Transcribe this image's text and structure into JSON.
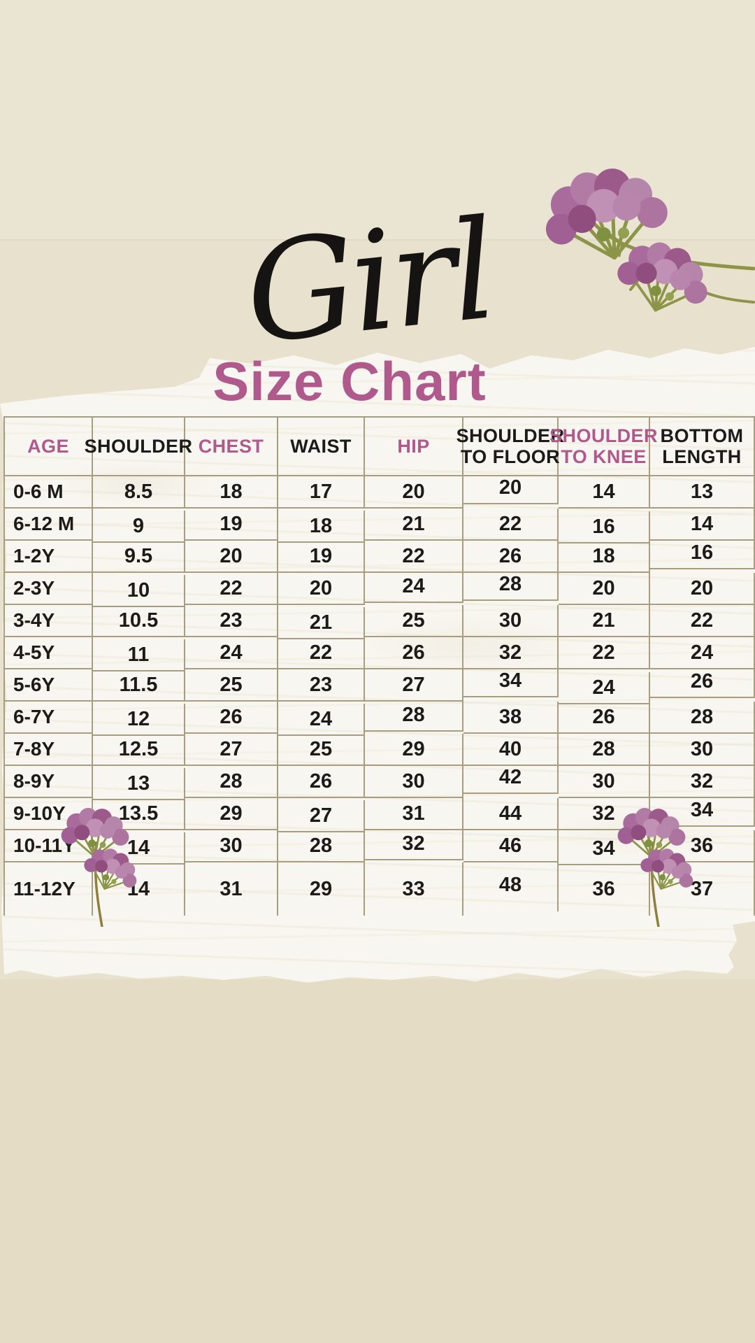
{
  "poster": {
    "script_title": "Girl",
    "main_title": "Size Chart"
  },
  "table": {
    "columns": [
      {
        "label": "AGE",
        "accent": true
      },
      {
        "label": "SHOULDER",
        "accent": false
      },
      {
        "label": "CHEST",
        "accent": true
      },
      {
        "label": "WAIST",
        "accent": false
      },
      {
        "label": "HIP",
        "accent": true
      },
      {
        "label": "SHOULDER TO FLOOR",
        "accent": false
      },
      {
        "label": "SHOULDER TO KNEE",
        "accent": true
      },
      {
        "label": "BOTTOM LENGTH",
        "accent": false
      }
    ],
    "rows": [
      {
        "age": "0-6 M",
        "values": [
          "8.5",
          "18",
          "17",
          "20",
          "20",
          "14",
          "13"
        ]
      },
      {
        "age": "6-12 M",
        "values": [
          "9",
          "19",
          "18",
          "21",
          "22",
          "16",
          "14"
        ]
      },
      {
        "age": "1-2Y",
        "values": [
          "9.5",
          "20",
          "19",
          "22",
          "26",
          "18",
          "16"
        ]
      },
      {
        "age": "2-3Y",
        "values": [
          "10",
          "22",
          "20",
          "24",
          "28",
          "20",
          "20"
        ]
      },
      {
        "age": "3-4Y",
        "values": [
          "10.5",
          "23",
          "21",
          "25",
          "30",
          "21",
          "22"
        ]
      },
      {
        "age": "4-5Y",
        "values": [
          "11",
          "24",
          "22",
          "26",
          "32",
          "22",
          "24"
        ]
      },
      {
        "age": "5-6Y",
        "values": [
          "11.5",
          "25",
          "23",
          "27",
          "34",
          "24",
          "26"
        ]
      },
      {
        "age": "6-7Y",
        "values": [
          "12",
          "26",
          "24",
          "28",
          "38",
          "26",
          "28"
        ]
      },
      {
        "age": "7-8Y",
        "values": [
          "12.5",
          "27",
          "25",
          "29",
          "40",
          "28",
          "30"
        ]
      },
      {
        "age": "8-9Y",
        "values": [
          "13",
          "28",
          "26",
          "30",
          "42",
          "30",
          "32"
        ]
      },
      {
        "age": "9-10Y",
        "values": [
          "13.5",
          "29",
          "27",
          "31",
          "44",
          "32",
          "34"
        ]
      },
      {
        "age": "10-11Y",
        "values": [
          "14",
          "30",
          "28",
          "32",
          "46",
          "34",
          "36"
        ]
      },
      {
        "age": "11-12Y",
        "values": [
          "14",
          "31",
          "29",
          "33",
          "48",
          "36",
          "37"
        ]
      }
    ]
  },
  "decor": {
    "top_right_flower": "pressed-purple-flowers",
    "bottom_left_flower": "pressed-flower-sprig",
    "bottom_right_flower": "pressed-flower-sprig"
  },
  "colors": {
    "accent_mauve": "#b0598d",
    "text_black": "#1d1b1a",
    "background_beige": "#e8e1cd",
    "paper_white": "#f8f6f0",
    "table_border_tan": "#a89e7f",
    "flower_purple": "#a96b9c",
    "stem_green": "#8d9449"
  }
}
